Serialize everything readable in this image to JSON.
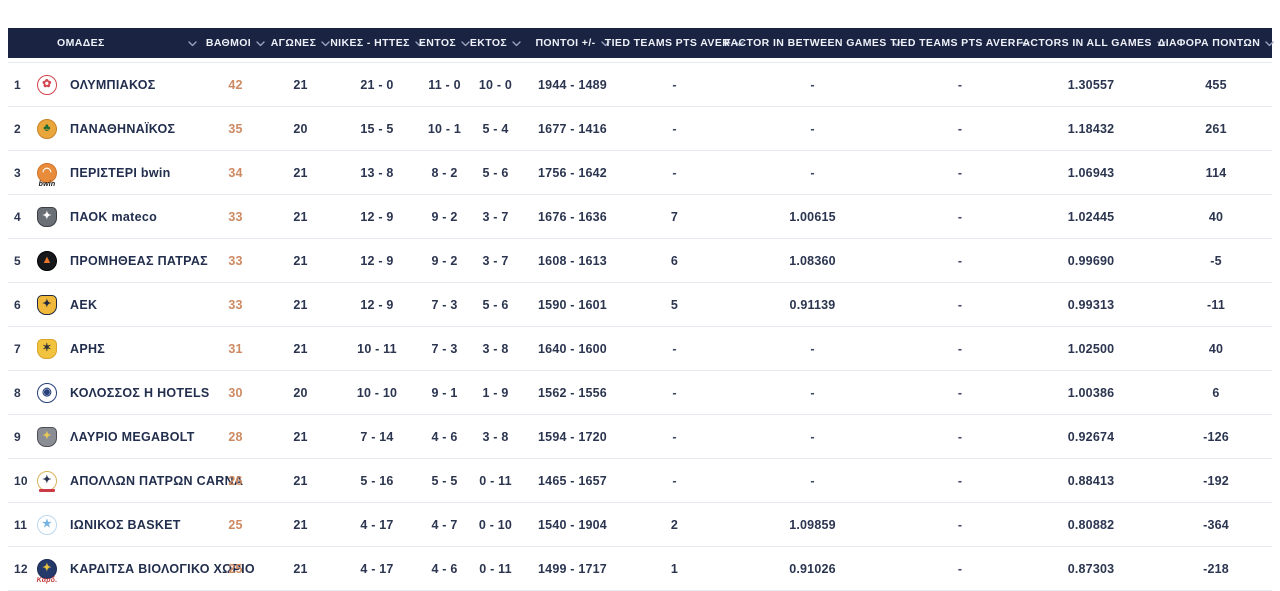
{
  "colors": {
    "header_bg": "#1a2342",
    "header_text": "#eef1f8",
    "chevron": "#98a2bd",
    "points_accent": "#cd8a62",
    "value_text": "#2b3550",
    "team_text": "#222e4d",
    "separator": "#e7e9f1",
    "row_bg": "#ffffff"
  },
  "table": {
    "columns": [
      {
        "key": "team",
        "label": "ΟΜΑΔΕΣ"
      },
      {
        "key": "points",
        "label": "ΒΑΘΜΟΙ"
      },
      {
        "key": "games",
        "label": "ΑΓΩΝΕΣ"
      },
      {
        "key": "wins_losses",
        "label": "ΝΙΚΕΣ - ΗΤΤΕΣ"
      },
      {
        "key": "home",
        "label": "ΕΝΤΟΣ"
      },
      {
        "key": "away",
        "label": "ΕΚΤΟΣ"
      },
      {
        "key": "points_plus_minus",
        "label": "ΠΟΝΤΟΙ +/-"
      },
      {
        "key": "tied_teams_pts_aver_1",
        "label": "TIED TEAMS PTS AVER"
      },
      {
        "key": "factor_in_between_games",
        "label": "FACTOR IN BETWEEN GAMES"
      },
      {
        "key": "tied_teams_pts_aver_2",
        "label": "TIED TEAMS PTS AVER"
      },
      {
        "key": "factors_in_all_games",
        "label": "FACTORS IN ALL GAMES"
      },
      {
        "key": "point_difference",
        "label": "ΔΙΑΦΟΡΑ ΠΟΝΤΩΝ"
      }
    ],
    "rows": [
      {
        "rank": "1",
        "team": "ΟΛΥΜΠΙΑΚΟΣ",
        "points": "42",
        "games": "21",
        "wins_losses": "21 - 0",
        "home": "11 - 0",
        "away": "10 - 0",
        "points_plus_minus": "1944 - 1489",
        "tied_teams_pts_aver_1": "-",
        "factor_in_between_games": "-",
        "tied_teams_pts_aver_2": "-",
        "factors_in_all_games": "1.30557",
        "point_difference": "455",
        "logo": {
          "shape": "circle",
          "bg": "#ffffff",
          "border": "#d2444e",
          "glyph": "✿",
          "glyph_color": "#d2444e"
        }
      },
      {
        "rank": "2",
        "team": "ΠΑΝΑΘΗΝΑΪΚΟΣ",
        "points": "35",
        "games": "20",
        "wins_losses": "15 - 5",
        "home": "10 - 1",
        "away": "5 - 4",
        "points_plus_minus": "1677 - 1416",
        "tied_teams_pts_aver_1": "-",
        "factor_in_between_games": "-",
        "tied_teams_pts_aver_2": "-",
        "factors_in_all_games": "1.18432",
        "point_difference": "261",
        "logo": {
          "shape": "circle",
          "bg": "#e9a63b",
          "border": "#c8842a",
          "glyph": "♣",
          "glyph_color": "#1d6b34"
        }
      },
      {
        "rank": "3",
        "team": "ΠΕΡΙΣΤΕΡΙ bwin",
        "points": "34",
        "games": "21",
        "wins_losses": "13 - 8",
        "home": "8 - 2",
        "away": "5 - 6",
        "points_plus_minus": "1756 - 1642",
        "tied_teams_pts_aver_1": "-",
        "factor_in_between_games": "-",
        "tied_teams_pts_aver_2": "-",
        "factors_in_all_games": "1.06943",
        "point_difference": "114",
        "logo": {
          "shape": "circle",
          "bg": "#e88b3a",
          "border": "#d0742c",
          "glyph": "◠",
          "glyph_color": "#ffffff",
          "caption": "bwin",
          "caption_color": "#111111"
        }
      },
      {
        "rank": "4",
        "team": "ΠΑΟΚ mateco",
        "points": "33",
        "games": "21",
        "wins_losses": "12 - 9",
        "home": "9 - 2",
        "away": "3 - 7",
        "points_plus_minus": "1676 - 1636",
        "tied_teams_pts_aver_1": "7",
        "factor_in_between_games": "1.00615",
        "tied_teams_pts_aver_2": "-",
        "factors_in_all_games": "1.02445",
        "point_difference": "40",
        "logo": {
          "shape": "shield",
          "bg": "#6b6f76",
          "border": "#3a3d42",
          "glyph": "✦",
          "glyph_color": "#ffffff"
        }
      },
      {
        "rank": "5",
        "team": "ΠΡΟΜΗΘΕΑΣ ΠΑΤΡΑΣ",
        "points": "33",
        "games": "21",
        "wins_losses": "12 - 9",
        "home": "9 - 2",
        "away": "3 - 7",
        "points_plus_minus": "1608 - 1613",
        "tied_teams_pts_aver_1": "6",
        "factor_in_between_games": "1.08360",
        "tied_teams_pts_aver_2": "-",
        "factors_in_all_games": "0.99690",
        "point_difference": "-5",
        "logo": {
          "shape": "circle",
          "bg": "#17181c",
          "border": "#000000",
          "glyph": "▲",
          "glyph_color": "#e8762c"
        }
      },
      {
        "rank": "6",
        "team": "ΑΕΚ",
        "points": "33",
        "games": "21",
        "wins_losses": "12 - 9",
        "home": "7 - 3",
        "away": "5 - 6",
        "points_plus_minus": "1590 - 1601",
        "tied_teams_pts_aver_1": "5",
        "factor_in_between_games": "0.91139",
        "tied_teams_pts_aver_2": "-",
        "factors_in_all_games": "0.99313",
        "point_difference": "-11",
        "logo": {
          "shape": "shield",
          "bg": "#f0b93c",
          "border": "#20293f",
          "glyph": "✦",
          "glyph_color": "#20293f"
        }
      },
      {
        "rank": "7",
        "team": "ΑΡΗΣ",
        "points": "31",
        "games": "21",
        "wins_losses": "10 - 11",
        "home": "7 - 3",
        "away": "3 - 8",
        "points_plus_minus": "1640 - 1600",
        "tied_teams_pts_aver_1": "-",
        "factor_in_between_games": "-",
        "tied_teams_pts_aver_2": "-",
        "factors_in_all_games": "1.02500",
        "point_difference": "40",
        "logo": {
          "shape": "shield",
          "bg": "#f2c33e",
          "border": "#d9a52b",
          "glyph": "✶",
          "glyph_color": "#2b2f36"
        }
      },
      {
        "rank": "8",
        "team": "ΚΟΛΟΣΣΟΣ H HOTELS",
        "points": "30",
        "games": "20",
        "wins_losses": "10 - 10",
        "home": "9 - 1",
        "away": "1 - 9",
        "points_plus_minus": "1562 - 1556",
        "tied_teams_pts_aver_1": "-",
        "factor_in_between_games": "-",
        "tied_teams_pts_aver_2": "-",
        "factors_in_all_games": "1.00386",
        "point_difference": "6",
        "logo": {
          "shape": "circle",
          "bg": "#ffffff",
          "border": "#28407c",
          "glyph": "◉",
          "glyph_color": "#28407c"
        }
      },
      {
        "rank": "9",
        "team": "ΛΑΥΡΙΟ MEGABOLT",
        "points": "28",
        "games": "21",
        "wins_losses": "7 - 14",
        "home": "4 - 6",
        "away": "3 - 8",
        "points_plus_minus": "1594 - 1720",
        "tied_teams_pts_aver_1": "-",
        "factor_in_between_games": "-",
        "tied_teams_pts_aver_2": "-",
        "factors_in_all_games": "0.92674",
        "point_difference": "-126",
        "logo": {
          "shape": "shield",
          "bg": "#8a8d94",
          "border": "#4b4e55",
          "glyph": "✦",
          "glyph_color": "#e7c75a"
        }
      },
      {
        "rank": "10",
        "team": "ΑΠΟΛΛΩΝ ΠΑΤΡΩΝ CARNA",
        "points": "26",
        "games": "21",
        "wins_losses": "5 - 16",
        "home": "5 - 5",
        "away": "0 - 11",
        "points_plus_minus": "1465 - 1657",
        "tied_teams_pts_aver_1": "-",
        "factor_in_between_games": "-",
        "tied_teams_pts_aver_2": "-",
        "factors_in_all_games": "0.88413",
        "point_difference": "-192",
        "logo": {
          "shape": "circle",
          "bg": "#ffffff",
          "border": "#d9b25c",
          "glyph": "✦",
          "glyph_color": "#2b3550",
          "ribbon": "#cc3b45"
        }
      },
      {
        "rank": "11",
        "team": "ΙΩΝΙΚΟΣ BASKET",
        "points": "25",
        "games": "21",
        "wins_losses": "4 - 17",
        "home": "4 - 7",
        "away": "0 - 10",
        "points_plus_minus": "1540 - 1904",
        "tied_teams_pts_aver_1": "2",
        "factor_in_between_games": "1.09859",
        "tied_teams_pts_aver_2": "-",
        "factors_in_all_games": "0.80882",
        "point_difference": "-364",
        "logo": {
          "shape": "circle",
          "bg": "#ffffff",
          "border": "#bcd8ef",
          "glyph": "★",
          "glyph_color": "#79b5e3"
        }
      },
      {
        "rank": "12",
        "team": "ΚΑΡΔΙΤΣΑ ΒΙΟΛΟΓΙΚΟ ΧΩΡΙΟ",
        "points": "25",
        "games": "21",
        "wins_losses": "4 - 17",
        "home": "4 - 6",
        "away": "0 - 11",
        "points_plus_minus": "1499 - 1717",
        "tied_teams_pts_aver_1": "1",
        "factor_in_between_games": "0.91026",
        "tied_teams_pts_aver_2": "-",
        "factors_in_all_games": "0.87303",
        "point_difference": "-218",
        "logo": {
          "shape": "circle",
          "bg": "#253a6b",
          "border": "#1a2b52",
          "glyph": "✦",
          "glyph_color": "#e8c23f",
          "caption": "Καρδ.",
          "caption_color": "#c53b3b"
        }
      }
    ]
  }
}
